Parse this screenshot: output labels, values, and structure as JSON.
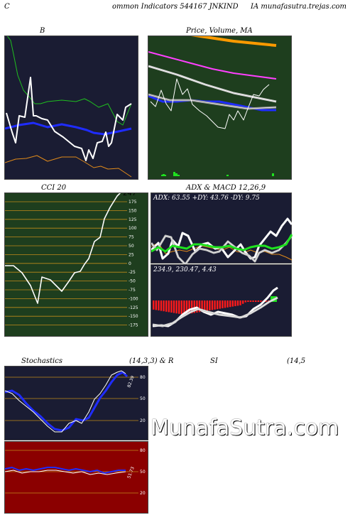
{
  "header": {
    "left": "C",
    "middle": "ommon  Indicators 544167 JNKIND",
    "right": "IA munafasutra.trejas.com"
  },
  "panels": {
    "bollinger": {
      "title": "B",
      "colors": {
        "bg": "#1a1c33",
        "upper": "#1fbe1f",
        "lower": "#e08a1a",
        "mid": "#1f2cff",
        "price": "#ffffff"
      }
    },
    "price_ma": {
      "title": "Price, Volume, MA",
      "colors": {
        "bg": "#1e3e1e",
        "ma_fast": "#ff40ff",
        "ma_slow": "#1f2cff",
        "ma_long": "#ff9a00"
      }
    },
    "cci": {
      "title": "CCI 20",
      "value_label": "247",
      "ticks": [
        "175",
        "150",
        "125",
        "100",
        "75",
        "50",
        "25",
        "0",
        "-25",
        "-50",
        "-75",
        "-100",
        "-125",
        "-150",
        "-175"
      ],
      "colors": {
        "bg": "#1e3e1e",
        "grid": "#c08a1a",
        "line": "#ffffff"
      }
    },
    "adx": {
      "title": "ADX  & MACD 12,26,9",
      "readout": "ADX: 63.55  +DY: 43.76  -DY: 9.75",
      "colors": {
        "bg": "#1a1c33",
        "adx": "#1fe21f",
        "pdi": "#ffffff",
        "mdi": "#e08a1a"
      }
    },
    "macd": {
      "readout": "234.9,  230.47,  4.43",
      "colors": {
        "bg": "#1a1c33",
        "hist_neg": "#ff1a1a",
        "hist_pos": "#1fe21f",
        "line": "#ffffff"
      }
    },
    "stochastics": {
      "title_left": "Stochastics",
      "title_mid": "(14,3,3) & R",
      "value_label": "82.39",
      "ticks": [
        "80",
        "50",
        "20"
      ],
      "colors": {
        "bg": "#1a1c33",
        "k": "#1f2cff",
        "d": "#ffffff",
        "grid": "#c08a1a"
      }
    },
    "rsi": {
      "title_left": "SI",
      "title_right": "(14,5",
      "value_label": "51.73",
      "ticks": [
        "80",
        "50",
        "20"
      ],
      "colors": {
        "bg": "#8b0000",
        "line": "#1f2cff",
        "line2": "#ffffff",
        "grid": "#c08a1a"
      }
    }
  },
  "watermark": "MunafaSutra.com"
}
